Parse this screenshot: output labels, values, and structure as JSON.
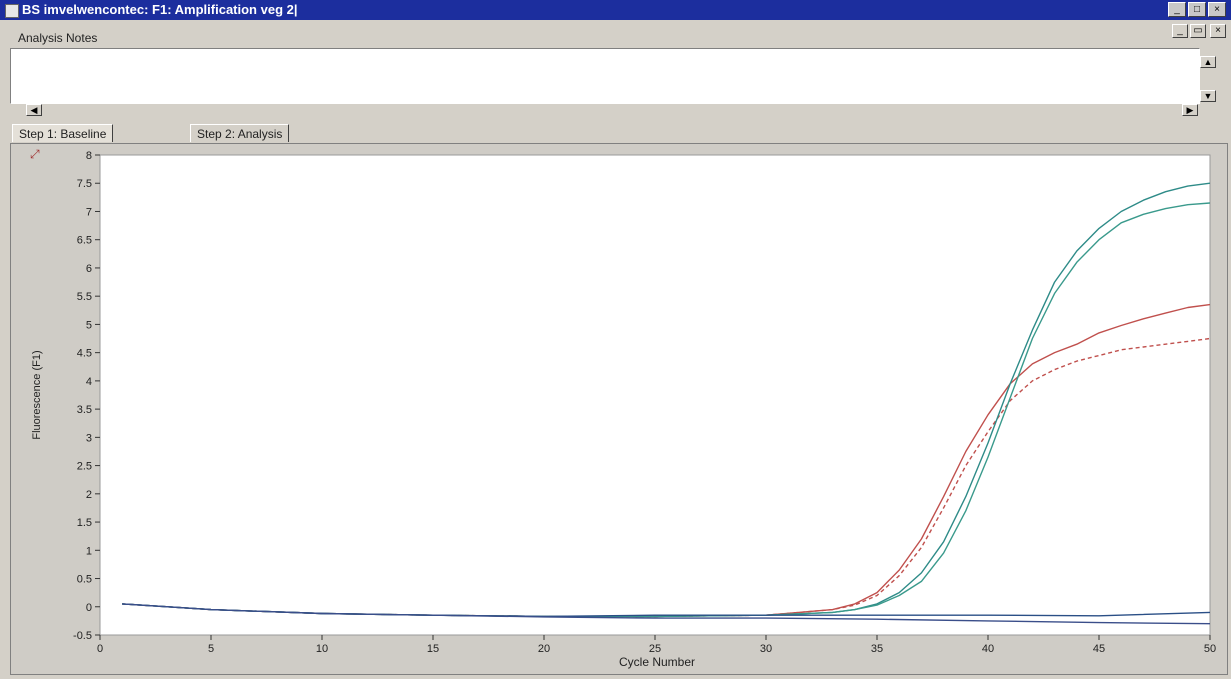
{
  "window": {
    "title": "BS imvelwencontec: F1: Amplification veg 2|",
    "controls": [
      "minimize",
      "maximize",
      "close"
    ]
  },
  "notes": {
    "label": "Analysis Notes",
    "value": ""
  },
  "tabs": [
    {
      "label": "Step 1: Baseline",
      "active": true
    },
    {
      "label": "Step 2: Analysis",
      "active": false
    }
  ],
  "chart_data": {
    "type": "line",
    "xlabel": "Cycle Number",
    "ylabel": "Fluorescence (F1)",
    "xlim": [
      0,
      50
    ],
    "ylim": [
      -0.5,
      8
    ],
    "xticks": [
      0,
      5,
      10,
      15,
      20,
      25,
      30,
      35,
      40,
      45,
      50
    ],
    "yticks": [
      -0.5,
      0,
      0.5,
      1,
      1.5,
      2,
      2.5,
      3,
      3.5,
      4,
      4.5,
      5,
      5.5,
      6,
      6.5,
      7,
      7.5,
      8
    ],
    "ytick_labels": [
      "-0.5",
      "0",
      "0.5",
      "1",
      "1.5",
      "2",
      "2.5",
      "3",
      "3.5",
      "4",
      "4.5",
      "5",
      "5.5",
      "6",
      "6.5",
      "7",
      "7.5",
      "8"
    ],
    "grid": false,
    "series": [
      {
        "color": "#c0504d",
        "dashed": false,
        "x": [
          1,
          5,
          10,
          15,
          20,
          25,
          30,
          33,
          34,
          35,
          36,
          37,
          38,
          39,
          40,
          41,
          42,
          43,
          44,
          45,
          46,
          47,
          48,
          49,
          50
        ],
        "y": [
          0.05,
          -0.05,
          -0.12,
          -0.15,
          -0.17,
          -0.17,
          -0.15,
          -0.05,
          0.05,
          0.25,
          0.65,
          1.2,
          1.95,
          2.75,
          3.4,
          3.95,
          4.3,
          4.5,
          4.65,
          4.85,
          4.98,
          5.1,
          5.2,
          5.3,
          5.35
        ]
      },
      {
        "color": "#c0504d",
        "dashed": true,
        "x": [
          1,
          5,
          10,
          15,
          20,
          25,
          30,
          33,
          34,
          35,
          36,
          37,
          38,
          39,
          40,
          41,
          42,
          43,
          44,
          45,
          46,
          47,
          48,
          49,
          50
        ],
        "y": [
          0.05,
          -0.05,
          -0.12,
          -0.15,
          -0.17,
          -0.17,
          -0.15,
          -0.05,
          0.03,
          0.2,
          0.55,
          1.05,
          1.75,
          2.5,
          3.1,
          3.65,
          4.0,
          4.2,
          4.35,
          4.45,
          4.55,
          4.6,
          4.65,
          4.7,
          4.75
        ]
      },
      {
        "color": "#2e8b88",
        "dashed": false,
        "x": [
          1,
          5,
          10,
          15,
          20,
          25,
          30,
          33,
          34,
          35,
          36,
          37,
          38,
          39,
          40,
          41,
          42,
          43,
          44,
          45,
          46,
          47,
          48,
          49,
          50
        ],
        "y": [
          0.05,
          -0.05,
          -0.12,
          -0.15,
          -0.17,
          -0.17,
          -0.15,
          -0.1,
          -0.05,
          0.05,
          0.25,
          0.6,
          1.15,
          1.95,
          2.9,
          3.95,
          4.9,
          5.75,
          6.3,
          6.7,
          7.0,
          7.2,
          7.35,
          7.45,
          7.5
        ]
      },
      {
        "color": "#3a9a8c",
        "dashed": false,
        "x": [
          1,
          5,
          10,
          15,
          20,
          25,
          30,
          33,
          34,
          35,
          36,
          37,
          38,
          39,
          40,
          41,
          42,
          43,
          44,
          45,
          46,
          47,
          48,
          49,
          50
        ],
        "y": [
          0.05,
          -0.05,
          -0.12,
          -0.15,
          -0.17,
          -0.17,
          -0.15,
          -0.1,
          -0.05,
          0.03,
          0.2,
          0.45,
          0.95,
          1.7,
          2.65,
          3.7,
          4.75,
          5.55,
          6.1,
          6.5,
          6.8,
          6.95,
          7.05,
          7.12,
          7.15
        ]
      },
      {
        "color": "#2a4f86",
        "dashed": false,
        "x": [
          1,
          5,
          10,
          15,
          20,
          25,
          30,
          35,
          40,
          45,
          50
        ],
        "y": [
          0.05,
          -0.05,
          -0.12,
          -0.15,
          -0.17,
          -0.15,
          -0.15,
          -0.15,
          -0.15,
          -0.16,
          -0.1
        ]
      },
      {
        "color": "#3a4e8a",
        "dashed": false,
        "x": [
          1,
          5,
          10,
          15,
          20,
          25,
          30,
          35,
          40,
          45,
          50
        ],
        "y": [
          0.05,
          -0.05,
          -0.12,
          -0.15,
          -0.18,
          -0.2,
          -0.2,
          -0.22,
          -0.25,
          -0.28,
          -0.3
        ]
      }
    ]
  }
}
